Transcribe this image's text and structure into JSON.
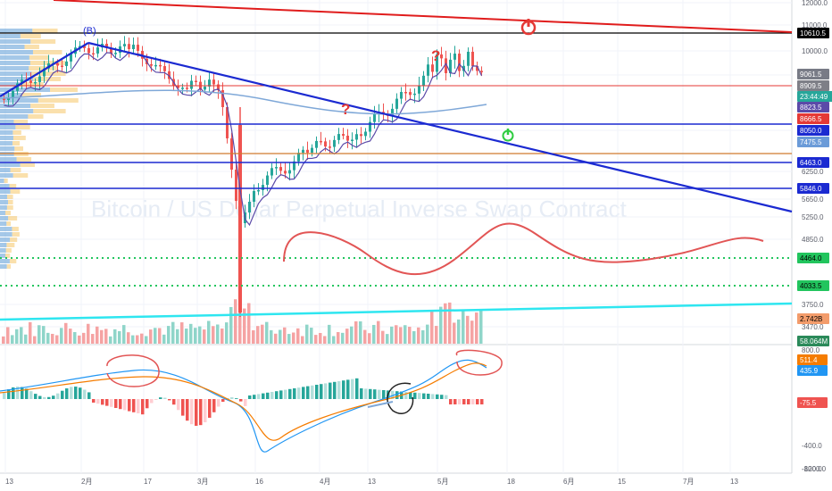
{
  "watermark": "Bitcoin / US Dollar Perpetual Inverse Swap Contract",
  "wave_label": "(B)",
  "question_mark": "?",
  "power_icon_red": "power-icon",
  "power_icon_green": "power-icon",
  "price_axis": {
    "ticks": [
      "12000.0",
      "11000.0",
      "10000.0",
      "9500.0",
      "8000.0",
      "6250.0",
      "5650.0",
      "5250.0",
      "4850.0",
      "3750.0",
      "3470.0"
    ],
    "tags": [
      {
        "label": "10610.5",
        "color": "#000000",
        "text_color": "#ffffff"
      },
      {
        "label": "9061.5",
        "color": "#787b86",
        "text_color": "#ffffff"
      },
      {
        "label": "8909.5",
        "color": "#7e7f87",
        "text_color": "#ffffff"
      },
      {
        "label": "23:44:49",
        "color": "#26a69a",
        "text_color": "#ffffff"
      },
      {
        "label": "8823.5",
        "color": "#5b4aa8",
        "text_color": "#ffffff"
      },
      {
        "label": "8666.5",
        "color": "#e53935",
        "text_color": "#ffffff"
      },
      {
        "label": "8050.0",
        "color": "#1b2ad1",
        "text_color": "#ffffff"
      },
      {
        "label": "7475.5",
        "color": "#6b9bd8",
        "text_color": "#ffffff"
      },
      {
        "label": "6463.0",
        "color": "#1b2ad1",
        "text_color": "#ffffff"
      },
      {
        "label": "5846.0",
        "color": "#1b2ad1",
        "text_color": "#ffffff"
      },
      {
        "label": "4464.0",
        "color": "#22c55e",
        "text_color": "#000000"
      },
      {
        "label": "4033.5",
        "color": "#22c55e",
        "text_color": "#000000"
      },
      {
        "label": "2.742B",
        "color": "#f39c6b",
        "text_color": "#000000"
      },
      {
        "label": "58.064M",
        "color": "#2b8a5a",
        "text_color": "#ffffff"
      }
    ]
  },
  "macd_axis": {
    "ticks": [
      "800.0",
      "400.0",
      "-400.0",
      "-800.0",
      "-1200.0"
    ],
    "tags": [
      {
        "label": "511.4",
        "color": "#f57c00",
        "text_color": "#ffffff"
      },
      {
        "label": "435.9",
        "color": "#2196f3",
        "text_color": "#ffffff"
      },
      {
        "label": "-75.5",
        "color": "#ef5350",
        "text_color": "#ffffff"
      }
    ]
  },
  "time_axis": [
    "13",
    "2月",
    "17",
    "3月",
    "16",
    "4月",
    "13",
    "5月",
    "18",
    "6月",
    "15",
    "7月",
    "13"
  ],
  "colors": {
    "up": "#26a69a",
    "down": "#ef5350",
    "resistance_red": "#e53935",
    "support_blue": "#1b2ad1",
    "trend_cyan": "#2ee6f0",
    "green_dotted": "#22c55e",
    "annotation_red": "#e25555"
  }
}
